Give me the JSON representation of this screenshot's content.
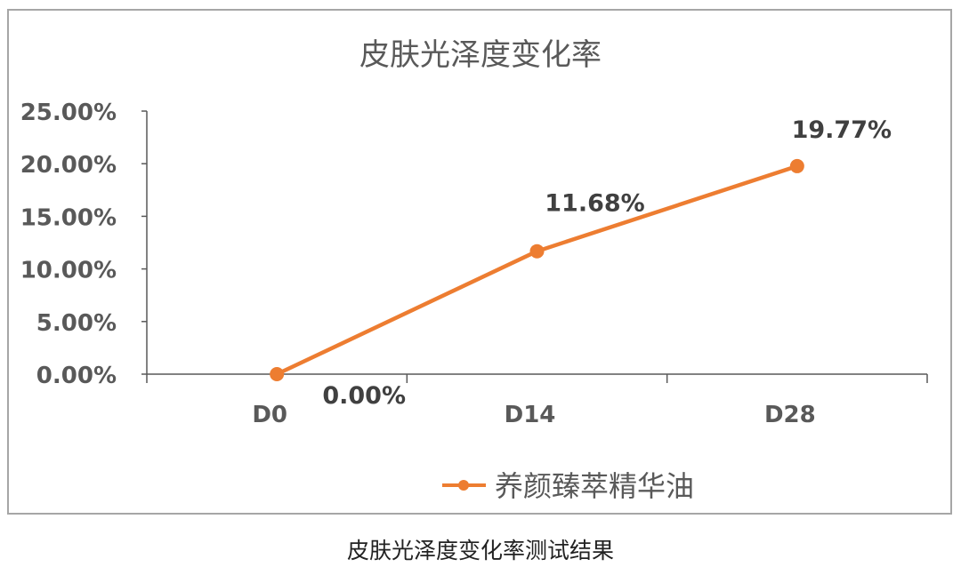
{
  "chart_data": {
    "type": "line",
    "title": "皮肤光泽度变化率",
    "categories": [
      "D0",
      "D14",
      "D28"
    ],
    "series": [
      {
        "name": "养颜臻萃精华油",
        "values": [
          0.0,
          11.68,
          19.77
        ],
        "labels": [
          "0.00%",
          "11.68%",
          "19.77%"
        ],
        "color": "#ED7D31"
      }
    ],
    "y_ticks": [
      "0.00%",
      "5.00%",
      "10.00%",
      "15.00%",
      "20.00%",
      "25.00%"
    ],
    "ylim": [
      0,
      25
    ],
    "y_unit": "%",
    "grid": false,
    "legend": "bottom"
  },
  "caption": "皮肤光泽度变化率测试结果"
}
